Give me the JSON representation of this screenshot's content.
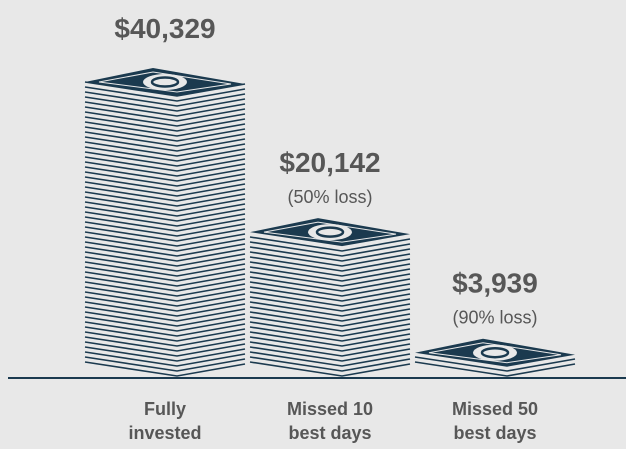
{
  "chart_data": {
    "type": "bar",
    "categories": [
      "Fully invested",
      "Missed 10 best days",
      "Missed 50 best days"
    ],
    "values": [
      40329,
      20142,
      3939
    ],
    "value_labels": [
      "$40,329",
      "$20,142",
      "$3,939"
    ],
    "loss_labels": [
      null,
      "(50% loss)",
      "(90% loss)"
    ],
    "color": "#1b3a4f"
  }
}
